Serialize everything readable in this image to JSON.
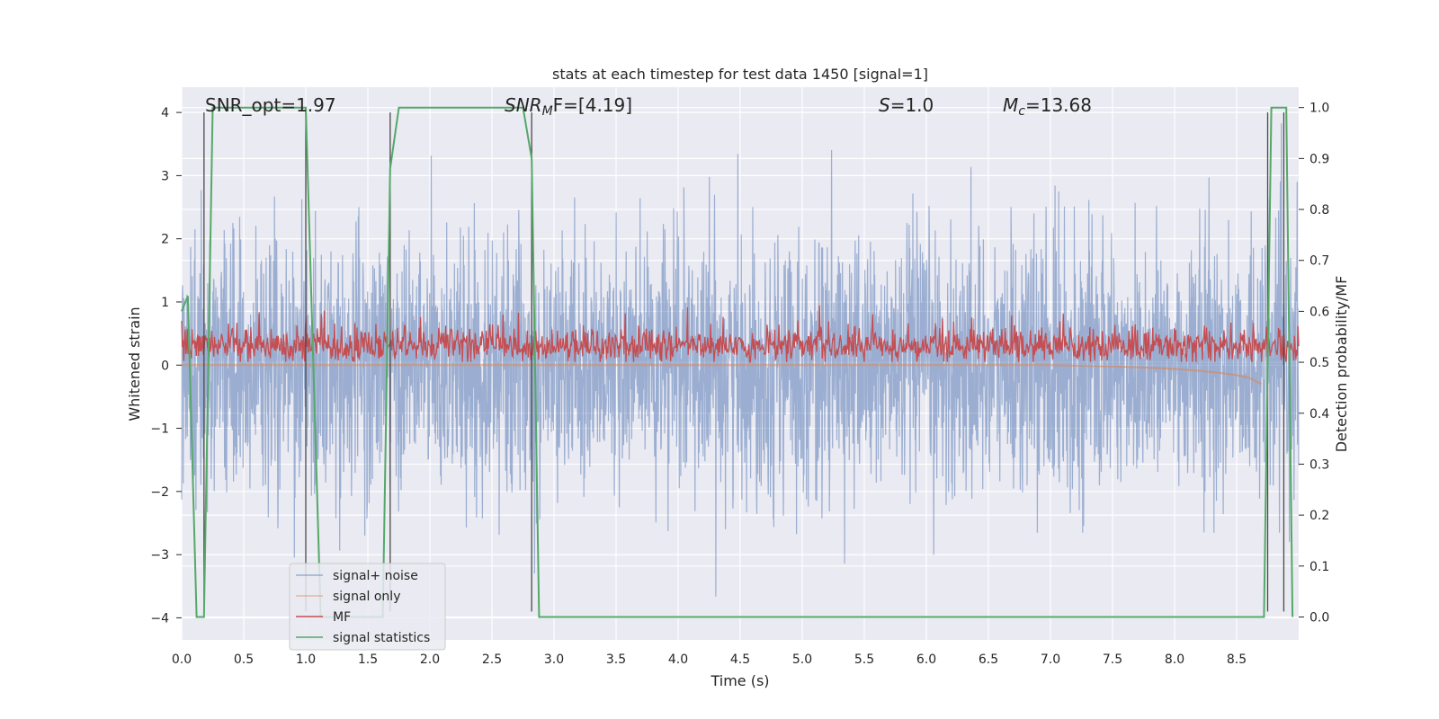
{
  "chart_data": {
    "type": "line",
    "title": "stats at each timestep for test data 1450 [signal=1]",
    "xlabel": "Time (s)",
    "ylabel": "Whitened strain",
    "y2label": "Detection probability/MF",
    "xlim": [
      0.0,
      9.0
    ],
    "ylim": [
      -4.35,
      4.4
    ],
    "y2lim": [
      -0.045,
      1.04
    ],
    "xticks": [
      "0.0",
      "0.5",
      "1.0",
      "1.5",
      "2.0",
      "2.5",
      "3.0",
      "3.5",
      "4.0",
      "4.5",
      "5.0",
      "5.5",
      "6.0",
      "6.5",
      "7.0",
      "7.5",
      "8.0",
      "8.5"
    ],
    "yticks": [
      "−4",
      "−3",
      "−2",
      "−1",
      "0",
      "1",
      "2",
      "3",
      "4"
    ],
    "y2ticks": [
      "0.0",
      "0.1",
      "0.2",
      "0.3",
      "0.4",
      "0.5",
      "0.6",
      "0.7",
      "0.8",
      "0.9",
      "1.0"
    ],
    "grid": true,
    "legend_position": "lower-left",
    "annotations": {
      "snr_opt": "SNR_opt=1.97",
      "snr_mf_base": "SNR",
      "snr_mf_sub": "M",
      "snr_mf_rest": "F=[4.19]",
      "s_var": "S",
      "s_val": "=1.0",
      "mc_base": "M",
      "mc_sub": "c",
      "mc_val": "=13.68"
    },
    "series": [
      {
        "name": "signal+ noise",
        "color": "#4c72b0",
        "axis": "left",
        "description_range": [
          -3.7,
          4.0
        ],
        "mean": 0.0,
        "stdev": 1.0
      },
      {
        "name": "signal only",
        "color": "#dd8452",
        "axis": "left",
        "x": [
          0.0,
          7.0,
          7.5,
          7.8,
          8.0,
          8.2,
          8.4,
          8.5,
          8.6,
          8.7
        ],
        "y": [
          0.0,
          0.0,
          -0.02,
          -0.04,
          -0.06,
          -0.09,
          -0.13,
          -0.16,
          -0.2,
          -0.3
        ]
      },
      {
        "name": "MF",
        "color": "#c44e52",
        "axis": "left",
        "mean": 0.3,
        "max": 0.95
      },
      {
        "name": "signal statistics",
        "color": "#55a868",
        "axis": "right",
        "x": [
          0.0,
          0.05,
          0.12,
          0.18,
          0.25,
          0.5,
          0.75,
          1.0,
          1.12,
          1.25,
          1.5,
          1.62,
          1.68,
          1.75,
          2.0,
          2.5,
          2.75,
          2.82,
          2.88,
          3.0,
          4.0,
          5.0,
          6.0,
          7.0,
          8.0,
          8.5,
          8.72,
          8.78,
          8.85,
          8.9,
          8.95
        ],
        "y": [
          0.6,
          0.63,
          0.0,
          0.0,
          1.0,
          1.0,
          1.0,
          1.0,
          0.0,
          0.0,
          0.0,
          0.0,
          0.88,
          1.0,
          1.0,
          1.0,
          1.0,
          0.9,
          0.0,
          0.0,
          0.0,
          0.0,
          0.0,
          0.0,
          0.0,
          0.0,
          0.0,
          1.0,
          1.0,
          1.0,
          0.0
        ]
      }
    ],
    "vlines": [
      0.18,
      1.0,
      1.68,
      2.82,
      8.75,
      8.88
    ]
  }
}
